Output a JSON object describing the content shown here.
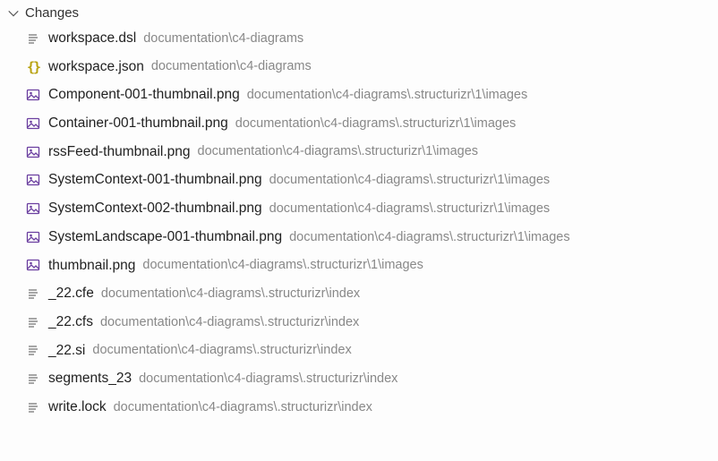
{
  "colors": {
    "background": "#fdfdfd",
    "text_primary": "#222222",
    "text_secondary": "#888888",
    "icon_generic": "#777777",
    "icon_json_brace": "#b8a20f",
    "icon_image": "#6b3fa0",
    "hover_bg": "#f0f0f0"
  },
  "section": {
    "title": "Changes",
    "expanded": true
  },
  "files": [
    {
      "icon": "text",
      "name": "workspace.dsl",
      "path": "documentation\\c4-diagrams"
    },
    {
      "icon": "json",
      "name": "workspace.json",
      "path": "documentation\\c4-diagrams"
    },
    {
      "icon": "image",
      "name": "Component-001-thumbnail.png",
      "path": "documentation\\c4-diagrams\\.structurizr\\1\\images"
    },
    {
      "icon": "image",
      "name": "Container-001-thumbnail.png",
      "path": "documentation\\c4-diagrams\\.structurizr\\1\\images"
    },
    {
      "icon": "image",
      "name": "rssFeed-thumbnail.png",
      "path": "documentation\\c4-diagrams\\.structurizr\\1\\images"
    },
    {
      "icon": "image",
      "name": "SystemContext-001-thumbnail.png",
      "path": "documentation\\c4-diagrams\\.structurizr\\1\\images"
    },
    {
      "icon": "image",
      "name": "SystemContext-002-thumbnail.png",
      "path": "documentation\\c4-diagrams\\.structurizr\\1\\images"
    },
    {
      "icon": "image",
      "name": "SystemLandscape-001-thumbnail.png",
      "path": "documentation\\c4-diagrams\\.structurizr\\1\\images"
    },
    {
      "icon": "image",
      "name": "thumbnail.png",
      "path": "documentation\\c4-diagrams\\.structurizr\\1\\images"
    },
    {
      "icon": "text",
      "name": "_22.cfe",
      "path": "documentation\\c4-diagrams\\.structurizr\\index"
    },
    {
      "icon": "text",
      "name": "_22.cfs",
      "path": "documentation\\c4-diagrams\\.structurizr\\index"
    },
    {
      "icon": "text",
      "name": "_22.si",
      "path": "documentation\\c4-diagrams\\.structurizr\\index"
    },
    {
      "icon": "text",
      "name": "segments_23",
      "path": "documentation\\c4-diagrams\\.structurizr\\index"
    },
    {
      "icon": "text",
      "name": "write.lock",
      "path": "documentation\\c4-diagrams\\.structurizr\\index"
    }
  ]
}
